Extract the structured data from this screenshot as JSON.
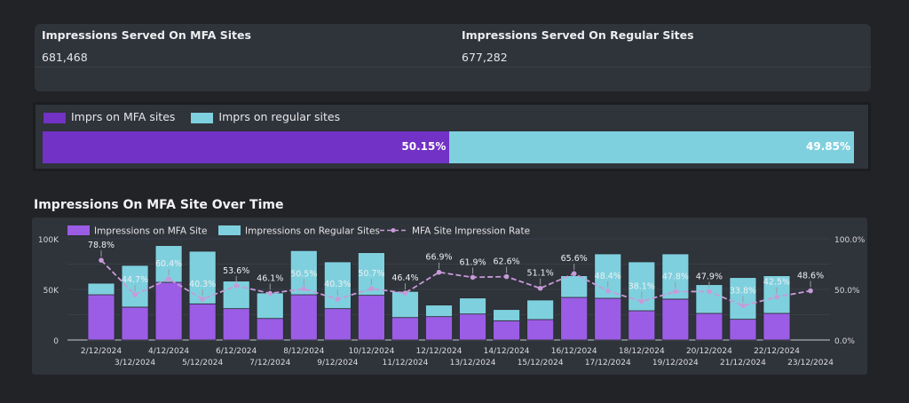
{
  "kpis": [
    {
      "title": "Impressions Served On MFA Sites",
      "value": "681,468"
    },
    {
      "title": "Impressions Served On Regular Sites",
      "value": "677,282"
    }
  ],
  "split": {
    "legend": [
      "Imprs on MFA sites",
      "Imprs on regular sites"
    ],
    "mfa_pct": 50.15,
    "regular_pct": 49.85,
    "mfa_label": "50.15%",
    "regular_label": "49.85%",
    "colors": {
      "mfa": "#7232c6",
      "regular": "#7fd0de"
    }
  },
  "chart_title": "Impressions On MFA Site Over Time",
  "chart_data": {
    "type": "bar",
    "stacked": true,
    "legend": [
      "Impressions on MFA Site",
      "Impressions on Regular Sites",
      "MFA Site Impression Rate"
    ],
    "categories": [
      "2/12/2024",
      "3/12/2024",
      "4/12/2024",
      "5/12/2024",
      "6/12/2024",
      "7/12/2024",
      "8/12/2024",
      "9/12/2024",
      "10/12/2024",
      "11/12/2024",
      "12/12/2024",
      "13/12/2024",
      "14/12/2024",
      "15/12/2024",
      "16/12/2024",
      "17/12/2024",
      "18/12/2024",
      "19/12/2024",
      "20/12/2024",
      "21/12/2024",
      "22/12/2024",
      "23/12/2024"
    ],
    "series": [
      {
        "name": "Impressions on MFA Site",
        "color": "#9b5de5",
        "values": [
          44700,
          32500,
          57000,
          35700,
          31000,
          21300,
          44700,
          31000,
          44200,
          22200,
          23100,
          25700,
          19000,
          20200,
          42100,
          41200,
          28900,
          40400,
          26300,
          20500,
          26300,
          null
        ]
      },
      {
        "name": "Impressions on Regular Sites",
        "color": "#7fd0de",
        "values": [
          11400,
          41200,
          36300,
          52000,
          27200,
          25200,
          43600,
          46200,
          42100,
          25800,
          11400,
          15800,
          11100,
          19300,
          21400,
          43900,
          48300,
          44700,
          28400,
          41200,
          37200,
          null
        ]
      },
      {
        "name": "MFA Site Impression Rate",
        "color": "#c79ad8",
        "axis": "right",
        "values": [
          78.8,
          44.7,
          60.4,
          40.3,
          53.6,
          46.1,
          50.5,
          40.3,
          50.7,
          46.4,
          66.9,
          61.9,
          62.6,
          51.1,
          65.6,
          48.4,
          38.1,
          47.8,
          47.9,
          33.8,
          42.5,
          48.6
        ],
        "labels": [
          "78.8%",
          "44.7%",
          "60.4%",
          "40.3%",
          "53.6%",
          "46.1%",
          "50.5%",
          "40.3%",
          "50.7%",
          "46.4%",
          "66.9%",
          "61.9%",
          "62.6%",
          "51.1%",
          "65.6%",
          "48.4%",
          "38.1%",
          "47.8%",
          "47.9%",
          "33.8%",
          "42.5%",
          "48.6%"
        ]
      }
    ],
    "y_left": {
      "range": [
        0,
        100000
      ],
      "ticks": [
        "0",
        "50K",
        "100K"
      ]
    },
    "y_right": {
      "range": [
        0,
        100
      ],
      "ticks": [
        "0.0%",
        "50.0%",
        "100.0%"
      ]
    },
    "grid": true,
    "legend_position": "top-left"
  }
}
